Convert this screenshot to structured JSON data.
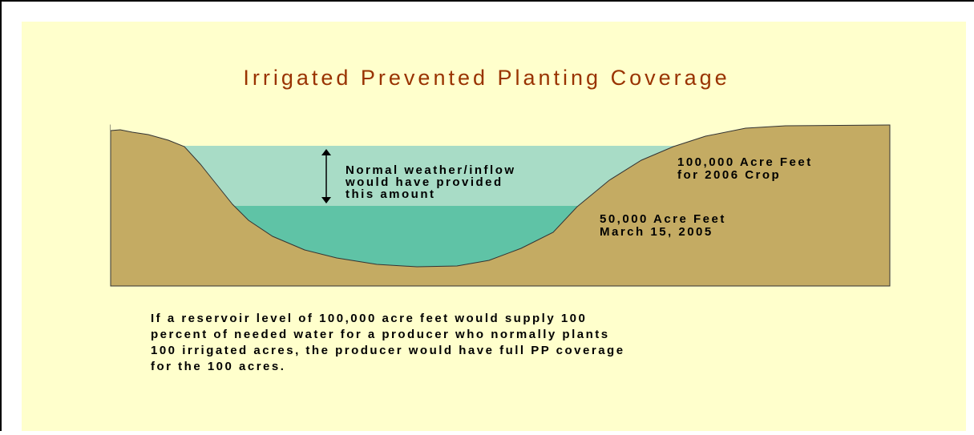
{
  "title": "Irrigated Prevented Planting Coverage",
  "diagram": {
    "normal_note": [
      "Normal weather/inflow",
      "would have provided",
      "this amount"
    ],
    "full_level": [
      "100,000 Acre Feet",
      "for 2006 Crop"
    ],
    "current_level": [
      "50,000 Acre Feet",
      "March 15, 2005"
    ]
  },
  "explanation": [
    "If a reservoir level of 100,000 acre feet would supply 100",
    "percent of needed water for a producer who normally plants",
    "100 irrigated acres, the producer would have full PP coverage",
    "for the 100 acres."
  ]
}
